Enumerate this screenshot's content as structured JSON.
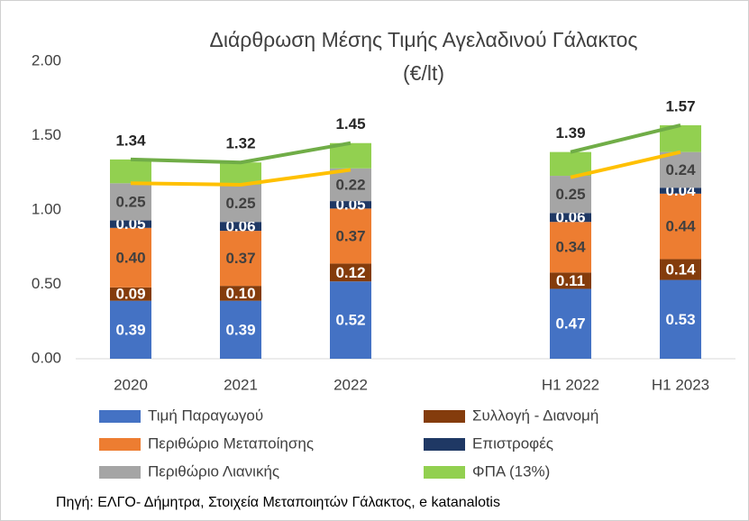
{
  "chart_data": {
    "type": "bar",
    "stacked": true,
    "title": "Διάρθρωση Μέσης Τιμής Αγελαδινού Γάλακτος",
    "subtitle": "(€/lt)",
    "categories": [
      "2020",
      "2021",
      "2022",
      null,
      "H1 2022",
      "H1 2023"
    ],
    "ylim": [
      0,
      2
    ],
    "yticks": [
      {
        "value": 0,
        "label": "0.00"
      },
      {
        "value": 0.5,
        "label": "0.50"
      },
      {
        "value": 1,
        "label": "1.00"
      },
      {
        "value": 1.5,
        "label": "1.50"
      },
      {
        "value": 2,
        "label": "2.00"
      }
    ],
    "grid": false,
    "series": [
      {
        "name": "Τιμή Παραγωγού",
        "color": "#4472c4",
        "label_color": "#ffffff",
        "values": [
          0.39,
          0.39,
          0.52,
          null,
          0.47,
          0.53
        ],
        "value_labels": [
          "0.39",
          "0.39",
          "0.52",
          null,
          "0.47",
          "0.53"
        ]
      },
      {
        "name": "Συλλογή - Διανομή",
        "color": "#843c0c",
        "label_color": "#ffffff",
        "values": [
          0.09,
          0.1,
          0.12,
          null,
          0.11,
          0.14
        ],
        "value_labels": [
          "0.09",
          "0.10",
          "0.12",
          null,
          "0.11",
          "0.14"
        ]
      },
      {
        "name": "Περιθώριο Μεταποίησης",
        "color": "#ed7d31",
        "label_color": "#404040",
        "values": [
          0.4,
          0.37,
          0.37,
          null,
          0.34,
          0.44
        ],
        "value_labels": [
          "0.40",
          "0.37",
          "0.37",
          null,
          "0.34",
          "0.44"
        ]
      },
      {
        "name": "Επιστροφές",
        "color": "#1f3864",
        "label_color": "#ffffff",
        "values": [
          0.05,
          0.06,
          0.05,
          null,
          0.06,
          0.04
        ],
        "value_labels": [
          "0.05",
          "0.06",
          "0.05",
          null,
          "0.06",
          "0.04"
        ]
      },
      {
        "name": "Περιθώριο Λιανικής",
        "color": "#a5a5a5",
        "label_color": "#404040",
        "values": [
          0.25,
          0.25,
          0.22,
          null,
          0.25,
          0.24
        ],
        "value_labels": [
          "0.25",
          "0.25",
          "0.22",
          null,
          "0.25",
          "0.24"
        ]
      },
      {
        "name": "ΦΠΑ (13%)",
        "color": "#92d050",
        "label_color": "#404040",
        "values": [
          0.16,
          0.15,
          0.17,
          null,
          0.16,
          0.18
        ]
      }
    ],
    "lines": [
      {
        "color": "#70ad47",
        "label_color": "#262626",
        "values": [
          1.34,
          1.32,
          1.45,
          null,
          1.39,
          1.57
        ],
        "value_labels": [
          "1.34",
          "1.32",
          "1.45",
          null,
          "1.39",
          "1.57"
        ]
      },
      {
        "color": "#ffc000",
        "values": [
          1.18,
          1.17,
          1.27,
          null,
          1.22,
          1.39
        ]
      }
    ]
  },
  "source": "Πηγή: ΕΛΓΟ- Δήμητρα, Στοιχεία Μεταποιητών Γάλακτος, e katanalotis"
}
